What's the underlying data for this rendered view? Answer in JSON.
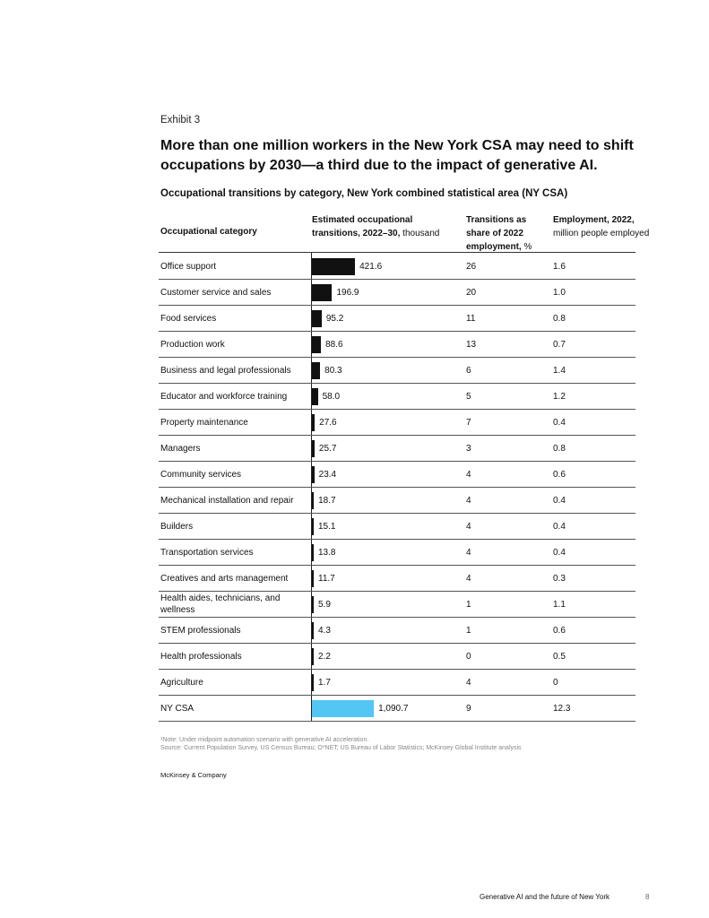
{
  "exhibit_label": "Exhibit 3",
  "headline": "More than one million workers in the New York CSA may need to shift occupations by 2030—a third due to the impact of generative AI.",
  "subtitle": "Occupational transitions by category, New York combined statistical area (NY CSA)",
  "headers": {
    "category": "Occupational category",
    "transitions_bold": "Estimated occupational transitions, 2022–30,",
    "transitions_unit": "thousand",
    "share_bold": "Transitions as share of 2022 employment,",
    "share_unit": "%",
    "employment_bold": "Employment, 2022,",
    "employment_unit": "million people employed"
  },
  "chart_data": {
    "type": "bar",
    "orientation": "horizontal",
    "title": "Occupational transitions by category, New York combined statistical area (NY CSA)",
    "xlabel": "Estimated occupational transitions, 2022–30, thousand",
    "categories": [
      "Office support",
      "Customer service and sales",
      "Food services",
      "Production work",
      "Business and legal professionals",
      "Educator and workforce training",
      "Property maintenance",
      "Managers",
      "Community services",
      "Mechanical installation and repair",
      "Builders",
      "Transportation services",
      "Creatives and arts management",
      "Health aides, technicians, and wellness",
      "STEM professionals",
      "Health professionals",
      "Agriculture",
      "NY CSA"
    ],
    "values": [
      421.6,
      196.9,
      95.2,
      88.6,
      80.3,
      58.0,
      27.6,
      25.7,
      23.4,
      18.7,
      15.1,
      13.8,
      11.7,
      5.9,
      4.3,
      2.2,
      1.7,
      1090.7
    ],
    "value_labels": [
      "421.6",
      "196.9",
      "95.2",
      "88.6",
      "80.3",
      "58.0",
      "27.6",
      "25.7",
      "23.4",
      "18.7",
      "15.1",
      "13.8",
      "11.7",
      "5.9",
      "4.3",
      "2.2",
      "1.7",
      "1,090.7"
    ],
    "share_pct": [
      "26",
      "20",
      "11",
      "13",
      "6",
      "5",
      "7",
      "3",
      "4",
      "4",
      "4",
      "4",
      "4",
      "1",
      "1",
      "0",
      "4",
      "9"
    ],
    "employment_millions": [
      "1.6",
      "1.0",
      "0.8",
      "0.7",
      "1.4",
      "1.2",
      "0.4",
      "0.8",
      "0.6",
      "0.4",
      "0.4",
      "0.4",
      "0.3",
      "1.1",
      "0.6",
      "0.5",
      "0",
      "12.3"
    ],
    "colors": {
      "bar": "#111111",
      "total": "#54c6f4"
    }
  },
  "notes": {
    "note": "¹Note: Under midpoint automation scenario with generative AI acceleration.",
    "source": "Source: Current Population Survey, US Census Bureau; O*NET; US Bureau of Labor Statistics; McKinsey Global Institute analysis"
  },
  "brand": "McKinsey & Company",
  "footer": {
    "title": "Generative AI and the future of New York",
    "page": "8"
  }
}
